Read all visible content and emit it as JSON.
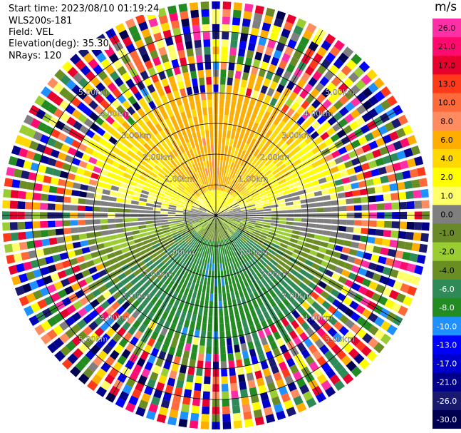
{
  "header": {
    "start_time": "Start time: 2023/08/10 01:19:24",
    "instrument": "WLS200s-181",
    "field": "Field: VEL",
    "elevation": "Elevation(deg): 35.30",
    "nrays": "NRays: 120"
  },
  "colorbar": {
    "unit": "m/s",
    "ticks": [
      "26.0",
      "21.0",
      "17.0",
      "13.0",
      "10.0",
      "8.0",
      "6.0",
      "4.0",
      "2.0",
      "1.0",
      "0.0",
      "-1.0",
      "-2.0",
      "-4.0",
      "-6.0",
      "-8.0",
      "-10.0",
      "-13.0",
      "-17.0",
      "-21.0",
      "-26.0",
      "-30.0"
    ],
    "colors": [
      "#ff2fa8",
      "#ff0a6e",
      "#e8002e",
      "#ff3a1a",
      "#ff6a3a",
      "#ff8c60",
      "#ffae00",
      "#ffd800",
      "#ffff00",
      "#ffff6a",
      "#7f7f7f",
      "#6a8a2a",
      "#9acd32",
      "#6b8e23",
      "#2e8b57",
      "#228b22",
      "#1e90ff",
      "#0000ff",
      "#0000cd",
      "#00008b",
      "#191970",
      "#000050"
    ]
  },
  "range_labels": [
    "1.00km",
    "2.00km",
    "3.00km",
    "4.00km",
    "5.00km"
  ],
  "chart_data": {
    "type": "ppi",
    "field": "VEL",
    "units": "m/s",
    "nrays": 120,
    "range_rings_km": [
      1.0,
      2.0,
      3.0,
      4.0,
      5.0
    ],
    "clim": [
      -30.0,
      26.0
    ],
    "pattern": "approaching (negative, green/blue) to the south, receding (positive, yellow/orange) to the north; noisy outer ranges"
  }
}
